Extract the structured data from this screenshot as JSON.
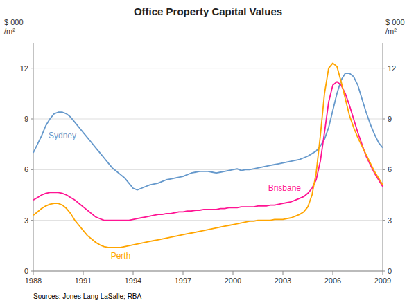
{
  "chart_data": {
    "type": "line",
    "title": "Office Property Capital Values",
    "ylabel": "$ 000\n/m²",
    "y2label": "$ 000\n/m²",
    "source": "Sources: Jones Lang LaSalle; RBA",
    "xlim": [
      1988,
      2009
    ],
    "xticks": [
      1988,
      1991,
      1994,
      1997,
      2000,
      2003,
      2006,
      2009
    ],
    "ylim": [
      0,
      13.5
    ],
    "yticks": [
      0,
      3,
      6,
      9,
      12
    ],
    "y2lim": [
      0,
      13.5
    ],
    "y2ticks": [
      0,
      3,
      6,
      9,
      12
    ],
    "grid": true,
    "x": [
      1988.0,
      1988.25,
      1988.5,
      1988.75,
      1989.0,
      1989.25,
      1989.5,
      1989.75,
      1990.0,
      1990.25,
      1990.5,
      1990.75,
      1991.0,
      1991.25,
      1991.5,
      1991.75,
      1992.0,
      1992.25,
      1992.5,
      1992.75,
      1993.0,
      1993.25,
      1993.5,
      1993.75,
      1994.0,
      1994.25,
      1994.5,
      1994.75,
      1995.0,
      1995.25,
      1995.5,
      1995.75,
      1996.0,
      1996.25,
      1996.5,
      1996.75,
      1997.0,
      1997.25,
      1997.5,
      1997.75,
      1998.0,
      1998.25,
      1998.5,
      1998.75,
      1999.0,
      1999.25,
      1999.5,
      1999.75,
      2000.0,
      2000.25,
      2000.5,
      2000.75,
      2001.0,
      2001.25,
      2001.5,
      2001.75,
      2002.0,
      2002.25,
      2002.5,
      2002.75,
      2003.0,
      2003.25,
      2003.5,
      2003.75,
      2004.0,
      2004.25,
      2004.5,
      2004.75,
      2005.0,
      2005.25,
      2005.5,
      2005.75,
      2006.0,
      2006.25,
      2006.5,
      2006.75,
      2007.0,
      2007.25,
      2007.5,
      2007.75,
      2008.0,
      2008.25,
      2008.5,
      2008.75,
      2009.0
    ],
    "series": [
      {
        "name": "Sydney",
        "color": "#6699CC",
        "values": [
          7.0,
          7.5,
          8.0,
          8.6,
          9.0,
          9.3,
          9.4,
          9.4,
          9.3,
          9.1,
          8.8,
          8.5,
          8.2,
          7.9,
          7.6,
          7.3,
          7.0,
          6.7,
          6.4,
          6.1,
          5.9,
          5.7,
          5.5,
          5.2,
          4.9,
          4.8,
          4.9,
          5.0,
          5.1,
          5.15,
          5.2,
          5.3,
          5.4,
          5.45,
          5.5,
          5.55,
          5.6,
          5.7,
          5.8,
          5.85,
          5.9,
          5.9,
          5.9,
          5.85,
          5.8,
          5.85,
          5.9,
          5.95,
          6.0,
          6.05,
          5.95,
          6.0,
          6.0,
          6.05,
          6.1,
          6.15,
          6.2,
          6.25,
          6.3,
          6.35,
          6.4,
          6.45,
          6.5,
          6.55,
          6.6,
          6.7,
          6.8,
          6.95,
          7.1,
          7.4,
          7.8,
          8.5,
          9.5,
          10.5,
          11.3,
          11.7,
          11.7,
          11.5,
          11.0,
          10.2,
          9.4,
          8.7,
          8.1,
          7.6,
          7.3
        ]
      },
      {
        "name": "Brisbane",
        "color": "#FF1493",
        "values": [
          4.2,
          4.35,
          4.5,
          4.6,
          4.65,
          4.65,
          4.65,
          4.6,
          4.5,
          4.35,
          4.2,
          4.0,
          3.8,
          3.6,
          3.4,
          3.2,
          3.1,
          3.0,
          3.0,
          3.0,
          3.0,
          3.0,
          3.0,
          3.0,
          3.05,
          3.1,
          3.15,
          3.2,
          3.25,
          3.3,
          3.35,
          3.35,
          3.4,
          3.4,
          3.45,
          3.5,
          3.5,
          3.55,
          3.55,
          3.6,
          3.6,
          3.65,
          3.65,
          3.65,
          3.65,
          3.7,
          3.7,
          3.75,
          3.75,
          3.75,
          3.8,
          3.8,
          3.8,
          3.8,
          3.85,
          3.85,
          3.85,
          3.9,
          3.9,
          3.95,
          4.0,
          4.05,
          4.1,
          4.2,
          4.3,
          4.4,
          4.6,
          4.9,
          5.4,
          6.5,
          8.2,
          10.0,
          11.0,
          11.2,
          11.0,
          10.5,
          9.8,
          9.0,
          8.2,
          7.5,
          6.8,
          6.3,
          5.8,
          5.4,
          5.0
        ]
      },
      {
        "name": "Perth",
        "color": "#FFA500",
        "values": [
          3.3,
          3.5,
          3.7,
          3.85,
          3.95,
          4.0,
          4.0,
          3.9,
          3.7,
          3.4,
          3.0,
          2.7,
          2.4,
          2.1,
          1.9,
          1.7,
          1.55,
          1.45,
          1.4,
          1.4,
          1.4,
          1.4,
          1.45,
          1.5,
          1.55,
          1.6,
          1.65,
          1.7,
          1.75,
          1.8,
          1.85,
          1.9,
          1.95,
          2.0,
          2.05,
          2.1,
          2.15,
          2.2,
          2.25,
          2.3,
          2.35,
          2.4,
          2.45,
          2.5,
          2.55,
          2.6,
          2.65,
          2.7,
          2.75,
          2.8,
          2.85,
          2.9,
          2.95,
          2.95,
          3.0,
          3.0,
          3.0,
          3.0,
          3.05,
          3.05,
          3.05,
          3.1,
          3.15,
          3.25,
          3.35,
          3.5,
          3.8,
          4.5,
          5.8,
          8.0,
          10.5,
          12.0,
          12.3,
          12.1,
          11.2,
          10.2,
          9.2,
          8.5,
          7.9,
          7.4,
          6.9,
          6.4,
          5.9,
          5.5,
          5.1
        ]
      }
    ]
  }
}
